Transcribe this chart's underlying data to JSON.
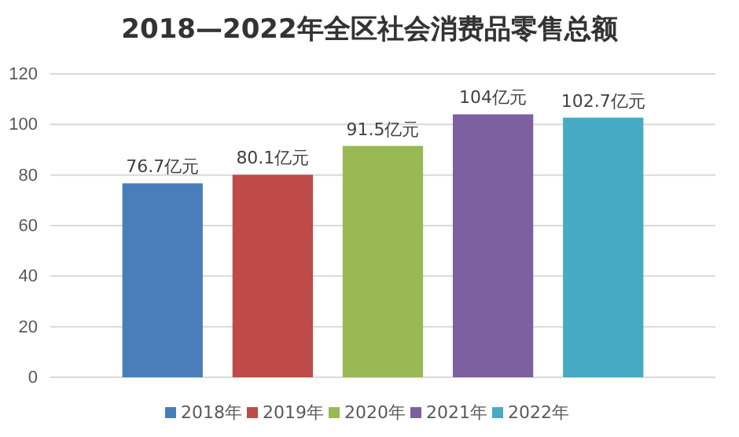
{
  "chart_data": {
    "type": "bar",
    "title": "2018—2022年全区社会消费品零售总额",
    "categories": [
      null
    ],
    "series": [
      {
        "name": "2018年",
        "color": "#4a7ebb",
        "values": [
          76.7
        ],
        "value_labels": [
          "76.7亿元"
        ]
      },
      {
        "name": "2019年",
        "color": "#be4b48",
        "values": [
          80.1
        ],
        "value_labels": [
          "80.1亿元"
        ]
      },
      {
        "name": "2020年",
        "color": "#98b954",
        "values": [
          91.5
        ],
        "value_labels": [
          "91.5亿元"
        ]
      },
      {
        "name": "2021年",
        "color": "#7d60a0",
        "values": [
          104
        ],
        "value_labels": [
          "104亿元"
        ]
      },
      {
        "name": "2022年",
        "color": "#46aac5",
        "values": [
          102.7
        ],
        "value_labels": [
          "102.7亿元"
        ]
      }
    ],
    "ylim": [
      0,
      120
    ],
    "yticks": [
      0,
      20,
      40,
      60,
      80,
      100,
      120
    ],
    "grid": "y",
    "legend": "bottom"
  }
}
